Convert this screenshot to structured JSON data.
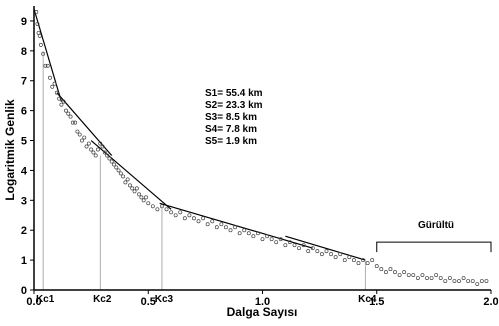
{
  "chart_data": {
    "type": "scatter",
    "title": "",
    "xlabel": "Dalga Sayısı",
    "ylabel": "Logaritmik Genlik",
    "xlim": [
      0,
      2.0
    ],
    "ylim": [
      0,
      9.5
    ],
    "x_ticks": [
      {
        "value": 0.0,
        "label": "0.0"
      },
      {
        "value": 0.5,
        "label": "0.5"
      },
      {
        "value": 1.0,
        "label": "1.0"
      },
      {
        "value": 1.5,
        "label": "1.5"
      },
      {
        "value": 2.0,
        "label": "2.0"
      }
    ],
    "y_ticks": [
      0,
      1,
      2,
      3,
      4,
      5,
      6,
      7,
      8,
      9
    ],
    "grid": false,
    "marker": "open-circle",
    "points": [
      [
        0.01,
        9.3
      ],
      [
        0.015,
        8.9
      ],
      [
        0.02,
        8.6
      ],
      [
        0.025,
        8.5
      ],
      [
        0.03,
        8.2
      ],
      [
        0.04,
        7.9
      ],
      [
        0.05,
        7.5
      ],
      [
        0.06,
        7.5
      ],
      [
        0.07,
        7.1
      ],
      [
        0.08,
        6.8
      ],
      [
        0.09,
        6.9
      ],
      [
        0.1,
        6.6
      ],
      [
        0.11,
        6.4
      ],
      [
        0.12,
        6.2
      ],
      [
        0.13,
        6.3
      ],
      [
        0.14,
        6.0
      ],
      [
        0.15,
        5.9
      ],
      [
        0.16,
        5.8
      ],
      [
        0.17,
        5.6
      ],
      [
        0.18,
        5.6
      ],
      [
        0.19,
        5.3
      ],
      [
        0.2,
        5.2
      ],
      [
        0.21,
        5.0
      ],
      [
        0.22,
        5.1
      ],
      [
        0.23,
        4.8
      ],
      [
        0.24,
        4.9
      ],
      [
        0.25,
        4.7
      ],
      [
        0.26,
        4.6
      ],
      [
        0.27,
        4.5
      ],
      [
        0.28,
        4.7
      ],
      [
        0.29,
        4.9
      ],
      [
        0.3,
        4.8
      ],
      [
        0.31,
        4.6
      ],
      [
        0.32,
        4.5
      ],
      [
        0.33,
        4.4
      ],
      [
        0.34,
        4.3
      ],
      [
        0.35,
        4.2
      ],
      [
        0.36,
        4.1
      ],
      [
        0.37,
        4.0
      ],
      [
        0.38,
        3.9
      ],
      [
        0.39,
        3.8
      ],
      [
        0.4,
        3.6
      ],
      [
        0.41,
        3.7
      ],
      [
        0.42,
        3.5
      ],
      [
        0.43,
        3.4
      ],
      [
        0.44,
        3.3
      ],
      [
        0.45,
        3.4
      ],
      [
        0.46,
        3.2
      ],
      [
        0.47,
        3.1
      ],
      [
        0.48,
        3.0
      ],
      [
        0.49,
        3.1
      ],
      [
        0.5,
        2.9
      ],
      [
        0.52,
        2.8
      ],
      [
        0.54,
        2.7
      ],
      [
        0.56,
        2.8
      ],
      [
        0.58,
        2.7
      ],
      [
        0.6,
        2.6
      ],
      [
        0.62,
        2.5
      ],
      [
        0.64,
        2.6
      ],
      [
        0.66,
        2.4
      ],
      [
        0.68,
        2.5
      ],
      [
        0.7,
        2.4
      ],
      [
        0.72,
        2.3
      ],
      [
        0.74,
        2.4
      ],
      [
        0.76,
        2.2
      ],
      [
        0.78,
        2.3
      ],
      [
        0.8,
        2.1
      ],
      [
        0.82,
        2.2
      ],
      [
        0.84,
        2.1
      ],
      [
        0.86,
        2.0
      ],
      [
        0.88,
        2.1
      ],
      [
        0.9,
        1.9
      ],
      [
        0.92,
        2.0
      ],
      [
        0.94,
        1.9
      ],
      [
        0.96,
        1.8
      ],
      [
        0.98,
        1.9
      ],
      [
        1.0,
        1.7
      ],
      [
        1.02,
        1.8
      ],
      [
        1.04,
        1.7
      ],
      [
        1.06,
        1.6
      ],
      [
        1.08,
        1.7
      ],
      [
        1.1,
        1.5
      ],
      [
        1.12,
        1.6
      ],
      [
        1.14,
        1.5
      ],
      [
        1.16,
        1.4
      ],
      [
        1.18,
        1.5
      ],
      [
        1.2,
        1.3
      ],
      [
        1.22,
        1.4
      ],
      [
        1.24,
        1.3
      ],
      [
        1.26,
        1.2
      ],
      [
        1.28,
        1.3
      ],
      [
        1.3,
        1.2
      ],
      [
        1.32,
        1.1
      ],
      [
        1.34,
        1.2
      ],
      [
        1.36,
        1.0
      ],
      [
        1.38,
        1.1
      ],
      [
        1.4,
        1.0
      ],
      [
        1.42,
        0.9
      ],
      [
        1.44,
        1.0
      ],
      [
        1.46,
        0.9
      ],
      [
        1.48,
        1.0
      ],
      [
        1.5,
        0.8
      ],
      [
        1.52,
        0.7
      ],
      [
        1.54,
        0.6
      ],
      [
        1.56,
        0.7
      ],
      [
        1.58,
        0.6
      ],
      [
        1.6,
        0.5
      ],
      [
        1.62,
        0.6
      ],
      [
        1.64,
        0.5
      ],
      [
        1.66,
        0.5
      ],
      [
        1.68,
        0.4
      ],
      [
        1.7,
        0.5
      ],
      [
        1.72,
        0.4
      ],
      [
        1.74,
        0.4
      ],
      [
        1.76,
        0.5
      ],
      [
        1.78,
        0.4
      ],
      [
        1.8,
        0.3
      ],
      [
        1.82,
        0.4
      ],
      [
        1.84,
        0.3
      ],
      [
        1.86,
        0.3
      ],
      [
        1.88,
        0.4
      ],
      [
        1.9,
        0.3
      ],
      [
        1.92,
        0.3
      ],
      [
        1.94,
        0.2
      ],
      [
        1.96,
        0.3
      ],
      [
        1.98,
        0.3
      ]
    ],
    "fit_lines": [
      {
        "name": "S1",
        "x": [
          0.0,
          0.12
        ],
        "y": [
          9.4,
          6.3
        ]
      },
      {
        "name": "S2",
        "x": [
          0.1,
          0.34
        ],
        "y": [
          6.6,
          4.5
        ]
      },
      {
        "name": "S3",
        "x": [
          0.25,
          0.6
        ],
        "y": [
          5.0,
          2.7
        ]
      },
      {
        "name": "S4",
        "x": [
          0.55,
          1.22
        ],
        "y": [
          2.9,
          1.4
        ]
      },
      {
        "name": "S5",
        "x": [
          1.1,
          1.45
        ],
        "y": [
          1.8,
          1.0
        ]
      }
    ],
    "kc_markers": [
      {
        "label": "Kc1",
        "x": 0.04,
        "y_top": 8.0
      },
      {
        "label": "Kc2",
        "x": 0.29,
        "y_top": 4.5
      },
      {
        "label": "Kc3",
        "x": 0.56,
        "y_top": 2.8
      },
      {
        "label": "Kc4",
        "x": 1.45,
        "y_top": 1.0
      }
    ],
    "depths": [
      "S1= 55.4 km",
      "S2= 23.3 km",
      "S3=  8.5 km",
      "S4=  7.8 km",
      "S5=  1.9 km"
    ],
    "noise_bracket": {
      "label": "Gürültü",
      "x_start": 1.5,
      "x_end": 2.0,
      "y": 1.6
    }
  }
}
